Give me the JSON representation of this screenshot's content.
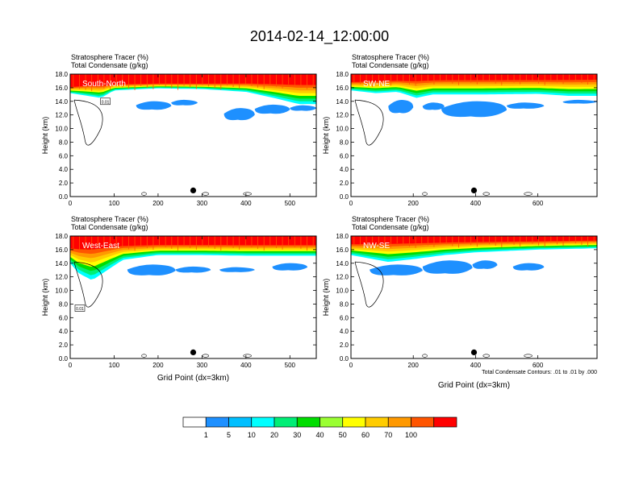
{
  "title": "2014-02-14_12:00:00",
  "colorbar": {
    "levels": [
      "1",
      "5",
      "10",
      "20",
      "30",
      "40",
      "50",
      "60",
      "70",
      "100"
    ],
    "colors": [
      "#ffffff",
      "#1e90ff",
      "#00bfff",
      "#00ffff",
      "#00ee76",
      "#00dd00",
      "#9aff32",
      "#ffff00",
      "#ffcc00",
      "#ff9900",
      "#ff5500",
      "#ff0000"
    ]
  },
  "chart_data": [
    {
      "type": "heatmap",
      "label": "South-North",
      "line1": "Stratosphere Tracer   (%)",
      "line2": "Total Condensate   (g/kg)",
      "ylabel": "Height (km)",
      "xlabel": "",
      "xlim": [
        0,
        560
      ],
      "ylim": [
        0,
        18
      ],
      "xticks": [
        "0",
        "100",
        "200",
        "300",
        "400",
        "500"
      ],
      "yticks": [
        "0.0",
        "2.0",
        "4.0",
        "6.0",
        "8.0",
        "10.0",
        "12.0",
        "14.0",
        "16.0",
        "18.0"
      ],
      "contour_labels": [
        "0.01"
      ],
      "marker_x": 280,
      "stratosphere_top_km": [
        [
          0,
          16.2
        ],
        [
          40,
          16.5
        ],
        [
          100,
          16.6
        ],
        [
          200,
          16.7
        ],
        [
          300,
          16.7
        ],
        [
          400,
          16.8
        ],
        [
          560,
          16.8
        ]
      ],
      "stratosphere_edge_km": [
        [
          0,
          15.2
        ],
        [
          40,
          14.8
        ],
        [
          70,
          14.5
        ],
        [
          100,
          15.6
        ],
        [
          200,
          15.9
        ],
        [
          300,
          15.8
        ],
        [
          400,
          15.4
        ],
        [
          470,
          14.4
        ],
        [
          520,
          13.6
        ],
        [
          560,
          13.6
        ]
      ],
      "blue_patches": [
        {
          "x": [
            150,
            230
          ],
          "y": [
            12.6,
            14.0
          ]
        },
        {
          "x": [
            230,
            290
          ],
          "y": [
            13.3,
            14.2
          ]
        },
        {
          "x": [
            350,
            420
          ],
          "y": [
            11.0,
            13.0
          ]
        },
        {
          "x": [
            420,
            500
          ],
          "y": [
            12.0,
            13.5
          ]
        },
        {
          "x": [
            500,
            560
          ],
          "y": [
            12.5,
            13.4
          ]
        }
      ]
    },
    {
      "type": "heatmap",
      "label": "SW-NE",
      "line1": "Stratosphere Tracer   (%)",
      "line2": "Total Condensate   (g/kg)",
      "ylabel": "Height (km)",
      "xlabel": "",
      "xlim": [
        0,
        790
      ],
      "ylim": [
        0,
        18
      ],
      "xticks": [
        "0",
        "200",
        "400",
        "600"
      ],
      "yticks": [
        "0.0",
        "2.0",
        "4.0",
        "6.0",
        "8.0",
        "10.0",
        "12.0",
        "14.0",
        "16.0",
        "18.0"
      ],
      "contour_labels": [],
      "marker_x": 395,
      "stratosphere_top_km": [
        [
          0,
          17.0
        ],
        [
          100,
          17.2
        ],
        [
          300,
          17.4
        ],
        [
          600,
          17.4
        ],
        [
          790,
          17.5
        ]
      ],
      "stratosphere_edge_km": [
        [
          0,
          15.6
        ],
        [
          80,
          15.2
        ],
        [
          150,
          15.4
        ],
        [
          210,
          14.5
        ],
        [
          260,
          15.0
        ],
        [
          400,
          15.0
        ],
        [
          600,
          15.1
        ],
        [
          700,
          14.8
        ],
        [
          790,
          14.8
        ]
      ],
      "blue_patches": [
        {
          "x": [
            120,
            200
          ],
          "y": [
            12.0,
            14.2
          ]
        },
        {
          "x": [
            230,
            300
          ],
          "y": [
            12.6,
            13.8
          ]
        },
        {
          "x": [
            290,
            500
          ],
          "y": [
            11.4,
            14.0
          ]
        },
        {
          "x": [
            500,
            620
          ],
          "y": [
            12.8,
            13.8
          ]
        },
        {
          "x": [
            680,
            790
          ],
          "y": [
            13.6,
            14.2
          ]
        }
      ]
    },
    {
      "type": "heatmap",
      "label": "West-East",
      "line1": "Stratosphere Tracer   (%)",
      "line2": "Total Condensate   (g/kg)",
      "ylabel": "Height (km)",
      "xlabel": "Grid Point (dx=3km)",
      "xlim": [
        0,
        560
      ],
      "ylim": [
        0,
        18
      ],
      "xticks": [
        "0",
        "100",
        "200",
        "300",
        "400",
        "500"
      ],
      "yticks": [
        "0.0",
        "2.0",
        "4.0",
        "6.0",
        "8.0",
        "10.0",
        "12.0",
        "14.0",
        "16.0",
        "18.0"
      ],
      "contour_labels": [
        "0.01"
      ],
      "marker_x": 280,
      "stratosphere_top_km": [
        [
          0,
          16.5
        ],
        [
          100,
          16.8
        ],
        [
          200,
          16.9
        ],
        [
          400,
          16.9
        ],
        [
          560,
          16.9
        ]
      ],
      "stratosphere_edge_km": [
        [
          0,
          14.0
        ],
        [
          20,
          12.5
        ],
        [
          50,
          11.5
        ],
        [
          80,
          12.8
        ],
        [
          120,
          14.5
        ],
        [
          200,
          15.2
        ],
        [
          300,
          15.2
        ],
        [
          400,
          15.1
        ],
        [
          560,
          15.1
        ]
      ],
      "blue_patches": [
        {
          "x": [
            130,
            240
          ],
          "y": [
            12.0,
            13.8
          ]
        },
        {
          "x": [
            240,
            320
          ],
          "y": [
            12.5,
            13.5
          ]
        },
        {
          "x": [
            340,
            420
          ],
          "y": [
            12.6,
            13.4
          ]
        },
        {
          "x": [
            460,
            540
          ],
          "y": [
            12.8,
            14.0
          ]
        }
      ]
    },
    {
      "type": "heatmap",
      "label": "NW-SE",
      "line1": "Stratosphere Tracer   (%)",
      "line2": "Total Condensate   (g/kg)",
      "ylabel": "Height (km)",
      "xlabel": "Grid Point (dx=3km)",
      "note": "Total Condensate Contours: .01 to .01 by .000",
      "xlim": [
        0,
        790
      ],
      "ylim": [
        0,
        18
      ],
      "xticks": [
        "0",
        "200",
        "400",
        "600"
      ],
      "yticks": [
        "0.0",
        "2.0",
        "4.0",
        "6.0",
        "8.0",
        "10.0",
        "12.0",
        "14.0",
        "16.0",
        "18.0"
      ],
      "contour_labels": [],
      "marker_x": 395,
      "stratosphere_top_km": [
        [
          0,
          17.0
        ],
        [
          100,
          17.2
        ],
        [
          300,
          17.3
        ],
        [
          600,
          17.4
        ],
        [
          790,
          17.5
        ]
      ],
      "stratosphere_edge_km": [
        [
          0,
          15.2
        ],
        [
          120,
          14.2
        ],
        [
          200,
          14.6
        ],
        [
          300,
          15.2
        ],
        [
          400,
          15.6
        ],
        [
          500,
          15.8
        ],
        [
          600,
          16.0
        ],
        [
          790,
          16.2
        ]
      ],
      "blue_patches": [
        {
          "x": [
            60,
            230
          ],
          "y": [
            12.0,
            13.8
          ]
        },
        {
          "x": [
            230,
            390
          ],
          "y": [
            12.2,
            14.4
          ]
        },
        {
          "x": [
            390,
            470
          ],
          "y": [
            13.0,
            14.4
          ]
        },
        {
          "x": [
            520,
            620
          ],
          "y": [
            12.8,
            14.0
          ]
        }
      ]
    }
  ]
}
